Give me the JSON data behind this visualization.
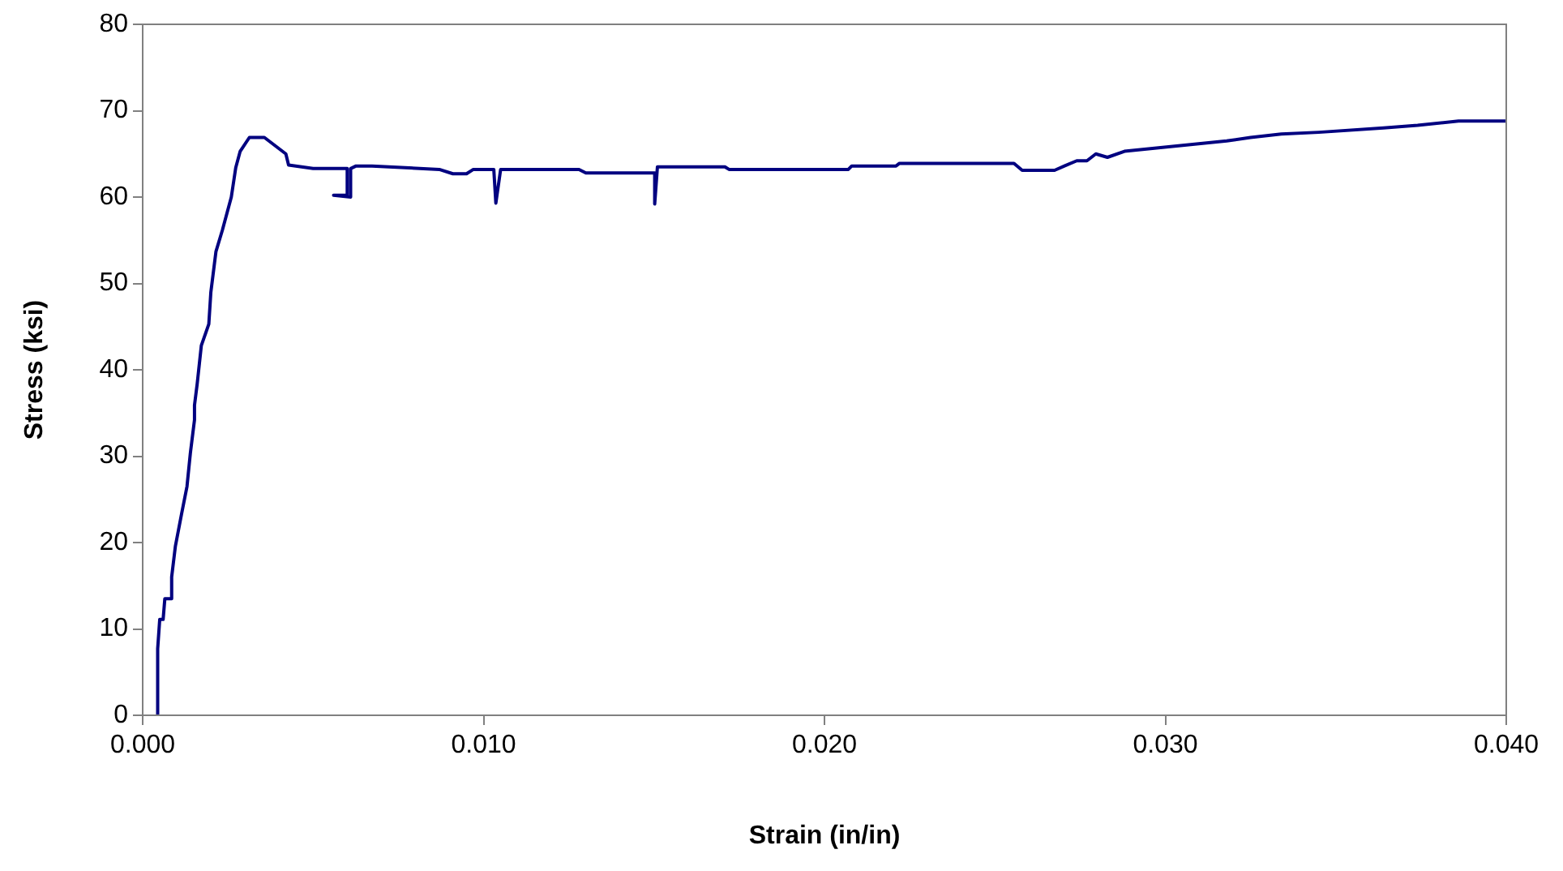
{
  "chart_data": {
    "type": "line",
    "xlabel": "Strain (in/in)",
    "ylabel": "Stress (ksi)",
    "xlim": [
      0,
      0.04
    ],
    "xticks": [
      {
        "value": 0,
        "label": "0.000"
      },
      {
        "value": 0.01,
        "label": "0.010"
      },
      {
        "value": 0.02,
        "label": "0.020"
      },
      {
        "value": 0.03,
        "label": "0.030"
      },
      {
        "value": 0.04,
        "label": "0.040"
      }
    ],
    "ylim": [
      0,
      80
    ],
    "yticks": [
      0,
      10,
      20,
      30,
      40,
      50,
      60,
      70,
      80
    ],
    "marker": "none",
    "legend": false,
    "series": [
      {
        "color": "#000080",
        "x": [
          0.00044,
          0.00044,
          0.0005,
          0.0006,
          0.00065,
          0.00085,
          0.00085,
          0.00096,
          0.00114,
          0.0013,
          0.0014,
          0.00152,
          0.00152,
          0.0016,
          0.00172,
          0.00194,
          0.002,
          0.00215,
          0.00234,
          0.0026,
          0.00273,
          0.00286,
          0.00313,
          0.00357,
          0.0042,
          0.00428,
          0.005,
          0.006,
          0.006,
          0.0056,
          0.0061,
          0.0061,
          0.00626,
          0.00673,
          0.0087,
          0.0091,
          0.0095,
          0.0097,
          0.0103,
          0.01036,
          0.0105,
          0.0128,
          0.013,
          0.01502,
          0.01502,
          0.0151,
          0.01708,
          0.0172,
          0.0207,
          0.0208,
          0.0221,
          0.0222,
          0.02556,
          0.0258,
          0.02675,
          0.02704,
          0.0274,
          0.0277,
          0.02796,
          0.0283,
          0.0288,
          0.0298,
          0.0308,
          0.0318,
          0.0325,
          0.0334,
          0.0345,
          0.0364,
          0.0374,
          0.0386,
          0.04
        ],
        "values": [
          0,
          7.7,
          11.1,
          11.1,
          13.5,
          13.5,
          16,
          19.6,
          23.3,
          26.5,
          30.4,
          34.2,
          35.9,
          38.4,
          42.8,
          45.3,
          49,
          53.7,
          56.2,
          60,
          63.4,
          65.3,
          66.9,
          66.9,
          65,
          63.7,
          63.3,
          63.3,
          60.2,
          60.2,
          60,
          63.3,
          63.6,
          63.6,
          63.2,
          62.7,
          62.7,
          63.2,
          63.2,
          59.3,
          63.2,
          63.2,
          62.8,
          62.8,
          59.2,
          63.5,
          63.5,
          63.2,
          63.2,
          63.6,
          63.6,
          63.9,
          63.9,
          63.1,
          63.1,
          63.6,
          64.2,
          64.2,
          65,
          64.6,
          65.3,
          65.7,
          66.1,
          66.5,
          66.9,
          67.3,
          67.5,
          68,
          68.3,
          68.8,
          68.8
        ]
      }
    ]
  }
}
